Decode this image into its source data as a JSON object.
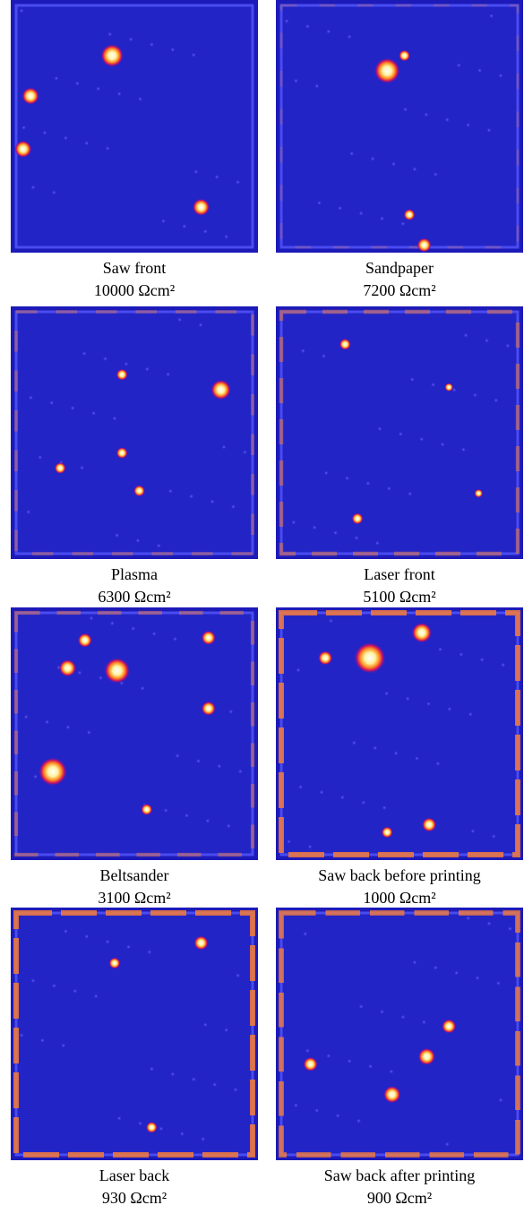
{
  "panels": [
    {
      "label": "Saw front",
      "value": "10000 Ωcm²"
    },
    {
      "label": "Sandpaper",
      "value": "7200 Ωcm²"
    },
    {
      "label": "Plasma",
      "value": "6300 Ωcm²"
    },
    {
      "label": "Laser front",
      "value": "5100 Ωcm²"
    },
    {
      "label": "Beltsander",
      "value": "3100 Ωcm²"
    },
    {
      "label": "Saw back before printing",
      "value": "1000 Ωcm²"
    },
    {
      "label": "Laser back",
      "value": "930 Ωcm²"
    },
    {
      "label": "Saw back after printing",
      "value": "900 Ωcm²"
    }
  ]
}
